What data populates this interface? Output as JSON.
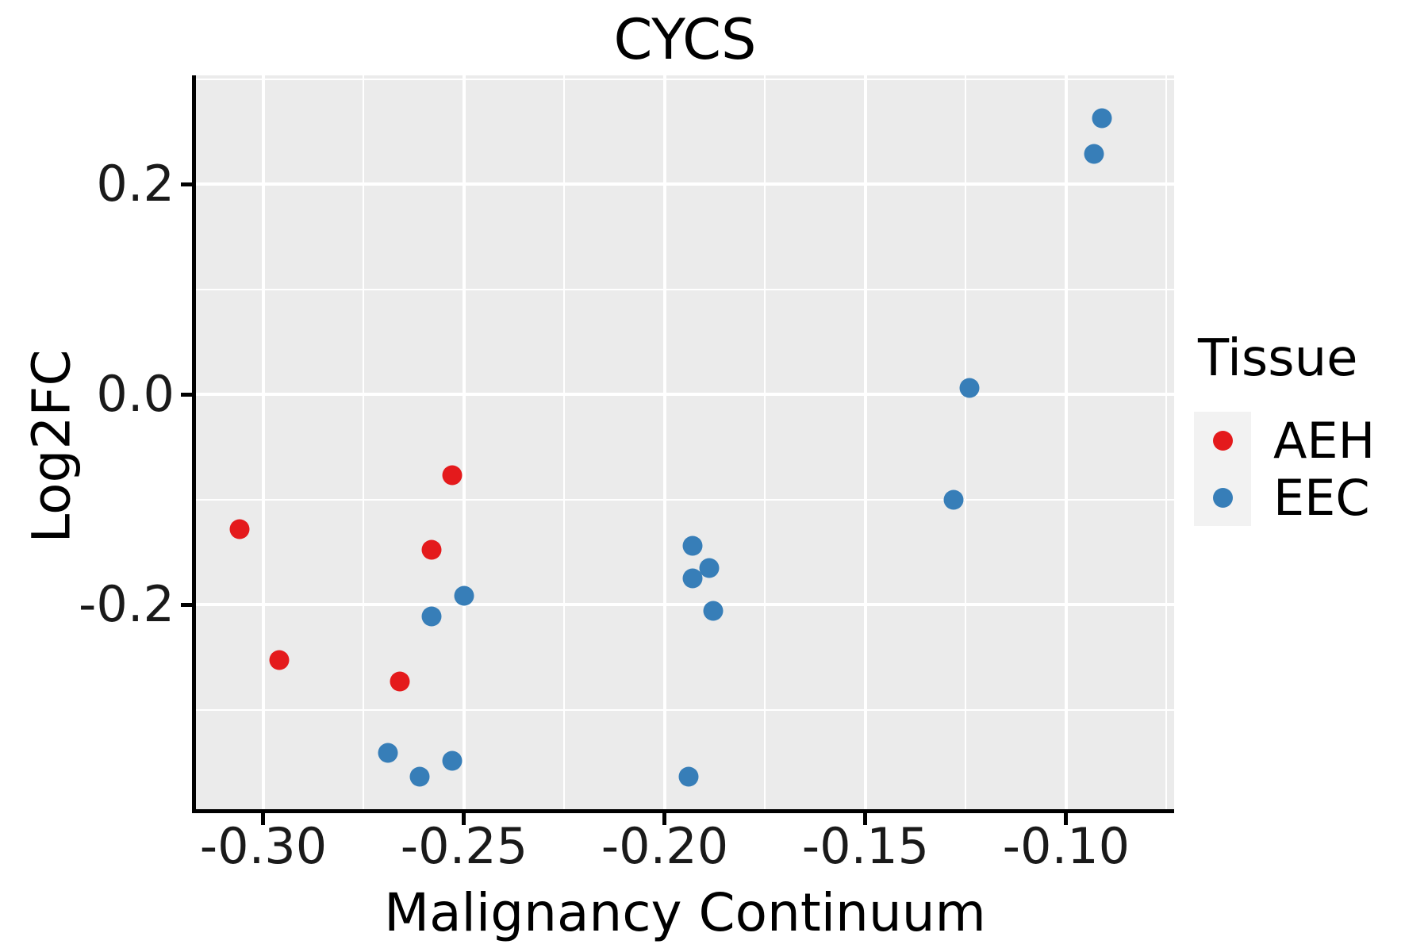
{
  "title": "CYCS",
  "axes": {
    "x": {
      "label": "Malignancy Continuum",
      "min": -0.3168,
      "max": -0.0731,
      "ticks": [
        {
          "value": -0.3,
          "label": "-0.30"
        },
        {
          "value": -0.25,
          "label": "-0.25"
        },
        {
          "value": -0.2,
          "label": "-0.20"
        },
        {
          "value": -0.15,
          "label": "-0.15"
        },
        {
          "value": -0.1,
          "label": "-0.10"
        }
      ],
      "minor": [
        -0.275,
        -0.225,
        -0.175,
        -0.125,
        -0.075
      ]
    },
    "y": {
      "label": "Log2FC",
      "min": -0.3947,
      "max": 0.3034,
      "ticks": [
        {
          "value": 0.2,
          "label": "0.2"
        },
        {
          "value": 0.0,
          "label": "0.0"
        },
        {
          "value": -0.2,
          "label": "-0.2"
        }
      ],
      "minor": [
        0.3,
        0.1,
        -0.1,
        -0.3
      ]
    }
  },
  "legend": {
    "title": "Tissue",
    "entries": [
      {
        "label": "AEH",
        "color": "#E41A1C"
      },
      {
        "label": "EEC",
        "color": "#377EB8"
      }
    ]
  },
  "chart_data": {
    "type": "scatter",
    "title": "CYCS",
    "xlabel": "Malignancy Continuum",
    "ylabel": "Log2FC",
    "xlim": [
      -0.317,
      -0.073
    ],
    "ylim": [
      -0.395,
      0.303
    ],
    "grid": "on",
    "legend_position": "right",
    "series": [
      {
        "name": "AEH",
        "color": "#E41A1C",
        "points": [
          [
            -0.306,
            -0.128
          ],
          [
            -0.296,
            -0.253
          ],
          [
            -0.266,
            -0.273
          ],
          [
            -0.258,
            -0.148
          ],
          [
            -0.253,
            -0.077
          ]
        ]
      },
      {
        "name": "EEC",
        "color": "#377EB8",
        "points": [
          [
            -0.269,
            -0.341
          ],
          [
            -0.261,
            -0.364
          ],
          [
            -0.253,
            -0.349
          ],
          [
            -0.258,
            -0.211
          ],
          [
            -0.25,
            -0.192
          ],
          [
            -0.194,
            -0.364
          ],
          [
            -0.193,
            -0.144
          ],
          [
            -0.193,
            -0.175
          ],
          [
            -0.189,
            -0.165
          ],
          [
            -0.188,
            -0.206
          ],
          [
            -0.128,
            -0.1
          ],
          [
            -0.124,
            0.006
          ],
          [
            -0.093,
            0.229
          ],
          [
            -0.091,
            0.263
          ]
        ]
      }
    ]
  },
  "style": {
    "panel_bg": "#EBEBEB",
    "grid_color": "#FFFFFF",
    "axis_color": "#000000",
    "legend_key_bg": "#F2F2F2"
  }
}
